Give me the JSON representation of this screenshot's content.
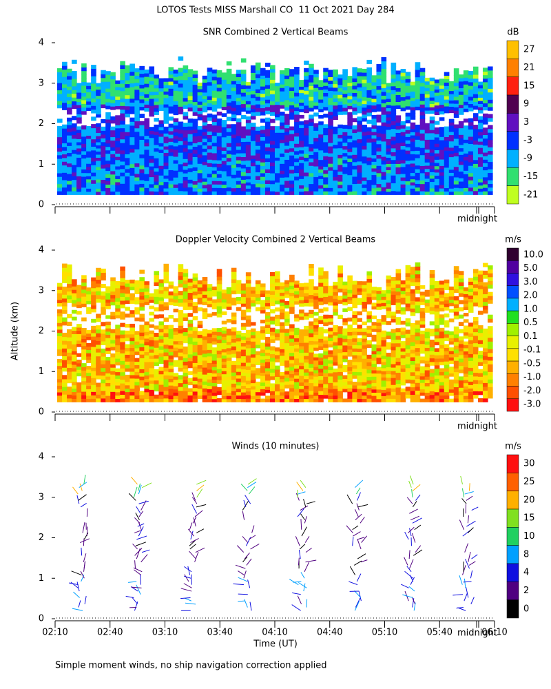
{
  "title": "LOTOS Tests MISS Marshall CO  11 Oct 2021 Day 284",
  "footnote": "Simple moment winds, no ship navigation correction applied",
  "chart_data": [
    {
      "type": "contour",
      "title": "SNR Combined 2 Vertical Beams",
      "ylim": [
        0,
        4
      ],
      "yticks": [
        0,
        1,
        2,
        3,
        4
      ],
      "annotation": "midnight",
      "colorbar": {
        "unit": "dB",
        "ticks": [
          27,
          21,
          15,
          9,
          3,
          -3,
          -9,
          -15,
          -21
        ],
        "colors": [
          "#ffc000",
          "#ff8000",
          "#ff2010",
          "#500050",
          "#6010c0",
          "#0030ff",
          "#00b0ff",
          "#30e070",
          "#c0ff20"
        ]
      }
    },
    {
      "type": "contour",
      "title": "Doppler Velocity Combined 2 Vertical Beams",
      "y_label": "Altitude (km)",
      "ylim": [
        0,
        4
      ],
      "yticks": [
        0,
        1,
        2,
        3,
        4
      ],
      "annotation": "midnight",
      "colorbar": {
        "unit": "m/s",
        "ticks": [
          {
            "value": 10,
            "label": "10.0"
          },
          {
            "value": 5,
            "label": "5.0"
          },
          {
            "value": 3,
            "label": "3.0"
          },
          {
            "value": 2,
            "label": "2.0"
          },
          {
            "value": 1,
            "label": "1.0"
          },
          0.5,
          0.1,
          -0.1,
          -0.5,
          {
            "value": -1,
            "label": "-1.0"
          },
          {
            "value": -2,
            "label": "-2.0"
          },
          {
            "value": -3,
            "label": "-3.0"
          }
        ],
        "colors": [
          "#300030",
          "#5000a0",
          "#3010e0",
          "#0050ff",
          "#00b0ff",
          "#20e020",
          "#a0f000",
          "#e8f000",
          "#ffe000",
          "#ffb000",
          "#ff8000",
          "#ff5000",
          "#ff1010"
        ]
      }
    },
    {
      "type": "barbs",
      "title": "Winds (10 minutes)",
      "x_label": "Time (UT)",
      "ylim": [
        0,
        4
      ],
      "yticks": [
        0,
        1,
        2,
        3,
        4
      ],
      "annotation": "midnight",
      "categories": [
        "02:10",
        "02:40",
        "03:10",
        "03:40",
        "04:10",
        "04:40",
        "05:10",
        "05:40",
        "06:10"
      ],
      "colorbar": {
        "unit": "m/s",
        "ticks": [
          30,
          25,
          20,
          15,
          10,
          8,
          4,
          2,
          0
        ],
        "colors": [
          "#ff1010",
          "#ff6000",
          "#ffb000",
          "#80e020",
          "#20d060",
          "#00a0ff",
          "#1010e0",
          "#500080",
          "#000000"
        ]
      }
    }
  ]
}
